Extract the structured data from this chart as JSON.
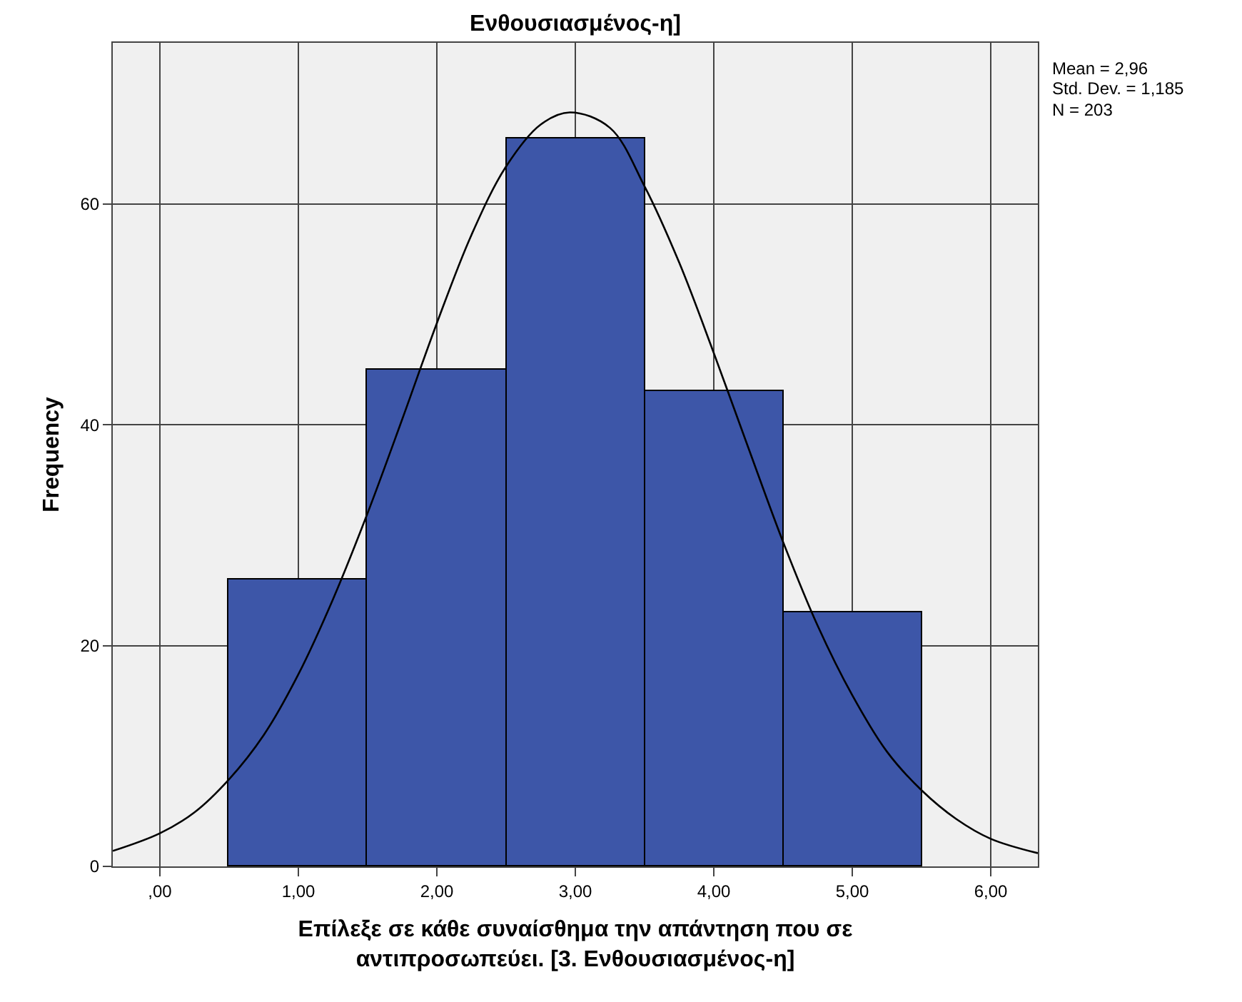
{
  "chart_data": {
    "type": "histogram",
    "title": "Ενθουσιασμένος-η]",
    "xlabel": "Επίλεξε σε κάθε συναίσθημα την απάντηση που σε αντιπροσωπεύει. [3. Ενθουσιασμένος-η]",
    "ylabel": "Frequency",
    "bins": [
      0.5,
      1.5,
      2.5,
      3.5,
      4.5,
      5.5
    ],
    "values": [
      26,
      45,
      66,
      43,
      23
    ],
    "color": "#3d56a8",
    "series": [
      {
        "type": "line",
        "color": "#000000",
        "x": [
          -0.34,
          0,
          0.25,
          0.5,
          0.75,
          1.0,
          1.25,
          1.5,
          1.75,
          2.0,
          2.25,
          2.5,
          2.75,
          2.96,
          3.25,
          3.5,
          3.75,
          4.0,
          4.25,
          4.5,
          4.75,
          5.0,
          5.25,
          5.5,
          5.75,
          6.0,
          6.34
        ],
        "values": [
          1.4,
          3.0,
          4.9,
          7.9,
          11.9,
          17.4,
          24.2,
          32.0,
          40.5,
          49.2,
          57.2,
          63.4,
          67.2,
          68.3,
          66.9,
          61.6,
          54.7,
          46.5,
          37.9,
          29.4,
          21.8,
          15.5,
          10.4,
          6.9,
          4.3,
          2.5,
          1.2
        ]
      }
    ],
    "xlim": [
      -0.34,
      6.34
    ],
    "xticks": [
      {
        "value": 0,
        "label": ",00"
      },
      {
        "value": 1,
        "label": "1,00"
      },
      {
        "value": 2,
        "label": "2,00"
      },
      {
        "value": 3,
        "label": "3,00"
      },
      {
        "value": 4,
        "label": "4,00"
      },
      {
        "value": 5,
        "label": "5,00"
      },
      {
        "value": 6,
        "label": "6,00"
      }
    ],
    "ylim": [
      0,
      74.6
    ],
    "yticks": [
      0,
      20,
      40,
      60
    ],
    "grid": true,
    "marker": "none",
    "annotations": [
      "Mean = 2,96",
      "Std. Dev. = 1,185",
      "N = 203"
    ]
  }
}
